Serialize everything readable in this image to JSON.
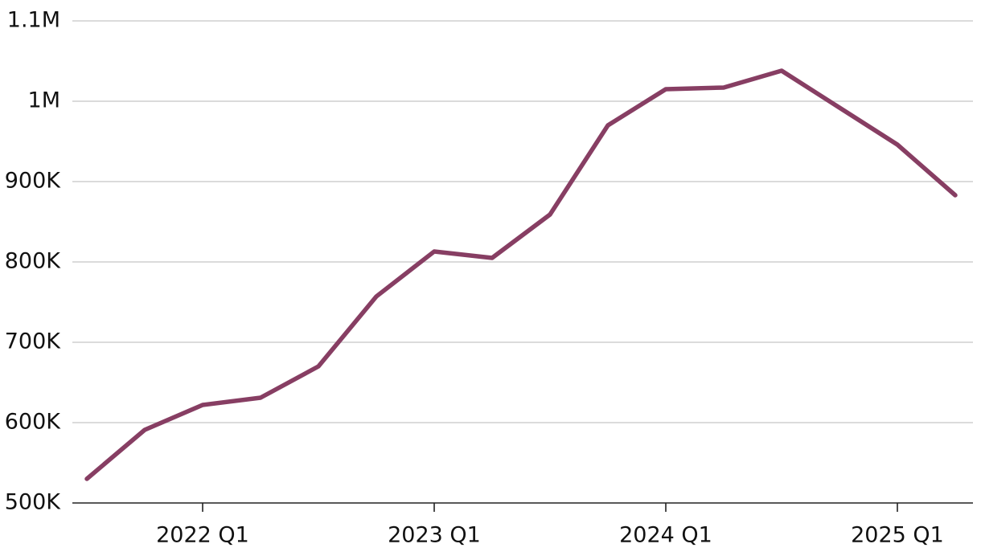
{
  "chart_data": {
    "type": "line",
    "title": "",
    "xlabel": "",
    "ylabel": "",
    "x": [
      "2021 Q3",
      "2021 Q4",
      "2022 Q1",
      "2022 Q2",
      "2022 Q3",
      "2022 Q4",
      "2023 Q1",
      "2023 Q2",
      "2023 Q3",
      "2023 Q4",
      "2024 Q1",
      "2024 Q2",
      "2024 Q3",
      "2024 Q4",
      "2025 Q1",
      "2025 Q2"
    ],
    "series": [
      {
        "values": [
          530000,
          591000,
          622000,
          631000,
          670000,
          757000,
          813000,
          805000,
          859000,
          970000,
          1015000,
          1017000,
          1038000,
          992000,
          946000,
          883000
        ]
      }
    ],
    "ylim": [
      500000,
      1100000
    ],
    "yticks": [
      500000,
      600000,
      700000,
      800000,
      900000,
      1000000,
      1100000
    ],
    "ytick_labels": [
      "500K",
      "600K",
      "700K",
      "800K",
      "900K",
      "1M",
      "1.1M"
    ],
    "xticks": [
      "2022 Q1",
      "2023 Q1",
      "2024 Q1",
      "2025 Q1"
    ],
    "xtick_labels": [
      "2022 Q1",
      "2023 Q1",
      "2024 Q1",
      "2025 Q1"
    ],
    "grid": true,
    "legend": "none",
    "colors": {
      "line": "#873e63",
      "grid": "#cfcfcf",
      "axis": "#222222",
      "text": "#111111"
    }
  }
}
